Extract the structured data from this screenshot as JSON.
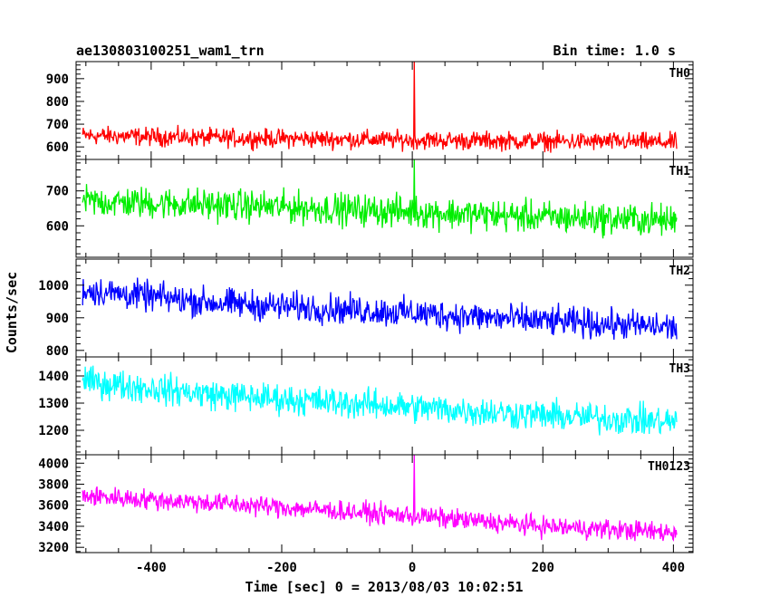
{
  "header": {
    "title": "ae130803100251_wam1_trn",
    "bin_time": "Bin time: 1.0 s"
  },
  "chart_data": {
    "type": "line",
    "xlabel": "Time [sec] 0 = 2013/08/03 10:02:51",
    "ylabel": "Counts/sec",
    "xlim": [
      -515,
      430
    ],
    "xticks": [
      -400,
      -200,
      0,
      200,
      400
    ],
    "bin_time_s": 1.0,
    "time_range": [
      -505,
      405
    ],
    "panels": [
      {
        "name": "TH0",
        "color": "#ff0000",
        "ylim": [
          545,
          975
        ],
        "yticks": [
          600,
          700,
          800,
          900
        ],
        "baseline": [
          [
            -505,
            650
          ],
          [
            -300,
            640
          ],
          [
            0,
            630
          ],
          [
            200,
            625
          ],
          [
            405,
            620
          ]
        ],
        "noise_amplitude": 40,
        "spike": {
          "x": 3,
          "y": 975
        }
      },
      {
        "name": "TH1",
        "color": "#00ee00",
        "ylim": [
          510,
          790
        ],
        "yticks": [
          600,
          700
        ],
        "baseline": [
          [
            -505,
            670
          ],
          [
            -300,
            660
          ],
          [
            0,
            640
          ],
          [
            200,
            625
          ],
          [
            405,
            615
          ]
        ],
        "noise_amplitude": 45,
        "spike": {
          "x": 3,
          "y": 790
        }
      },
      {
        "name": "TH2",
        "color": "#0000ff",
        "ylim": [
          780,
          1080
        ],
        "yticks": [
          800,
          900,
          1000
        ],
        "baseline": [
          [
            -505,
            985
          ],
          [
            -300,
            945
          ],
          [
            0,
            915
          ],
          [
            200,
            890
          ],
          [
            405,
            870
          ]
        ],
        "noise_amplitude": 45
      },
      {
        "name": "TH3",
        "color": "#00ffff",
        "ylim": [
          1110,
          1470
        ],
        "yticks": [
          1200,
          1300,
          1400
        ],
        "baseline": [
          [
            -505,
            1380
          ],
          [
            -300,
            1330
          ],
          [
            0,
            1285
          ],
          [
            200,
            1255
          ],
          [
            405,
            1230
          ]
        ],
        "noise_amplitude": 55
      },
      {
        "name": "TH0123",
        "color": "#ff00ff",
        "ylim": [
          3150,
          4080
        ],
        "yticks": [
          3200,
          3400,
          3600,
          3800,
          4000
        ],
        "baseline": [
          [
            -505,
            3690
          ],
          [
            -300,
            3620
          ],
          [
            0,
            3500
          ],
          [
            200,
            3400
          ],
          [
            405,
            3340
          ]
        ],
        "noise_amplitude": 95,
        "spike": {
          "x": 3,
          "y": 4080
        }
      }
    ]
  }
}
